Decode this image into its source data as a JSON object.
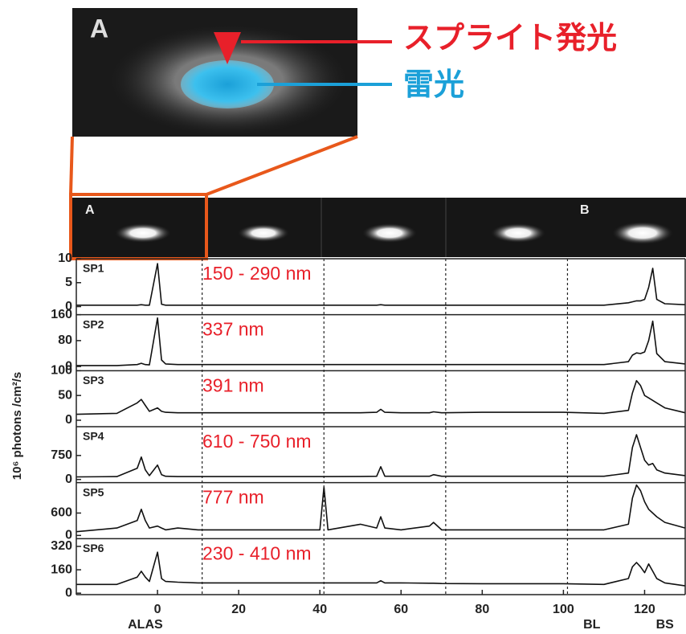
{
  "figure": {
    "inset_label": "A",
    "sprite_label": "スプライト発光",
    "lightning_label": "雷光",
    "strip_labels": [
      "A",
      "B"
    ]
  },
  "chart_data": {
    "type": "line",
    "y_label": "10⁶ photons /cm²/s",
    "color": "#111111",
    "xlim": [
      -20,
      130
    ],
    "xticks": [
      0,
      20,
      40,
      60,
      80,
      100,
      120
    ],
    "dashed_x": [
      11,
      41,
      71,
      101
    ],
    "bottom_labels": [
      {
        "text": "ALAS",
        "x": -3
      },
      {
        "text": "BL",
        "x": 107
      },
      {
        "text": "BS",
        "x": 125
      }
    ],
    "x": [
      -20,
      -10,
      -5,
      -4,
      -3,
      -2,
      0,
      1,
      2,
      5,
      10,
      20,
      30,
      40,
      41,
      42,
      50,
      54,
      55,
      56,
      60,
      67,
      68,
      70,
      80,
      90,
      100,
      110,
      116,
      117,
      118,
      119,
      120,
      121,
      122,
      123,
      125,
      130
    ],
    "panels": [
      {
        "name": "SP1",
        "annotation": "150 - 290 nm",
        "ylim": [
          -1.7,
          10
        ],
        "yticks": [
          0,
          5,
          10
        ],
        "values": [
          0.3,
          0.3,
          0.3,
          0.4,
          0.3,
          0.3,
          9,
          0.5,
          0.3,
          0.3,
          0.3,
          0.3,
          0.3,
          0.3,
          0.3,
          0.3,
          0.3,
          0.3,
          0.4,
          0.3,
          0.3,
          0.3,
          0.3,
          0.3,
          0.3,
          0.3,
          0.3,
          0.3,
          0.8,
          1,
          1.2,
          1.2,
          1.5,
          4,
          8,
          1.5,
          0.6,
          0.4
        ]
      },
      {
        "name": "SP2",
        "annotation": "337 nm",
        "ylim": [
          -13,
          160
        ],
        "yticks": [
          0,
          80,
          160
        ],
        "values": [
          3,
          3,
          6,
          10,
          6,
          5,
          150,
          20,
          8,
          6,
          6,
          6,
          6,
          6,
          6,
          6,
          6,
          6,
          6,
          6,
          6,
          6,
          6,
          6,
          6,
          6,
          6,
          6,
          15,
          35,
          42,
          40,
          45,
          80,
          140,
          40,
          15,
          8
        ]
      },
      {
        "name": "SP3",
        "annotation": "391 nm",
        "ylim": [
          -13,
          100
        ],
        "yticks": [
          0,
          50,
          100
        ],
        "values": [
          12,
          14,
          35,
          42,
          30,
          18,
          25,
          18,
          16,
          15,
          15,
          15,
          15,
          15,
          15,
          15,
          15,
          16,
          22,
          16,
          15,
          15,
          17,
          15,
          16,
          16,
          16,
          14,
          20,
          55,
          80,
          70,
          50,
          45,
          40,
          35,
          25,
          15
        ]
      },
      {
        "name": "SP4",
        "annotation": "610 - 750 nm",
        "ylim": [
          -100,
          1650
        ],
        "yticks": [
          0,
          750
        ],
        "values": [
          80,
          90,
          350,
          700,
          300,
          120,
          450,
          150,
          100,
          90,
          90,
          90,
          90,
          90,
          90,
          90,
          95,
          100,
          400,
          100,
          100,
          100,
          150,
          100,
          100,
          100,
          100,
          100,
          200,
          1000,
          1400,
          1000,
          600,
          450,
          500,
          300,
          200,
          120
        ]
      },
      {
        "name": "SP5",
        "annotation": "777 nm",
        "ylim": [
          -86,
          1414
        ],
        "yticks": [
          0,
          600
        ],
        "values": [
          100,
          200,
          400,
          700,
          400,
          200,
          250,
          200,
          150,
          200,
          150,
          150,
          150,
          150,
          1300,
          150,
          300,
          200,
          500,
          200,
          150,
          250,
          350,
          150,
          150,
          150,
          150,
          150,
          300,
          1000,
          1350,
          1200,
          900,
          700,
          600,
          500,
          350,
          200
        ]
      },
      {
        "name": "SP6",
        "annotation": "230 - 410 nm",
        "ylim": [
          -10,
          373
        ],
        "yticks": [
          0,
          160,
          320
        ],
        "values": [
          60,
          60,
          110,
          150,
          110,
          80,
          280,
          100,
          80,
          75,
          70,
          70,
          70,
          70,
          70,
          70,
          70,
          70,
          85,
          70,
          70,
          68,
          68,
          66,
          65,
          65,
          65,
          60,
          100,
          180,
          210,
          180,
          140,
          200,
          150,
          100,
          70,
          50
        ]
      }
    ]
  }
}
